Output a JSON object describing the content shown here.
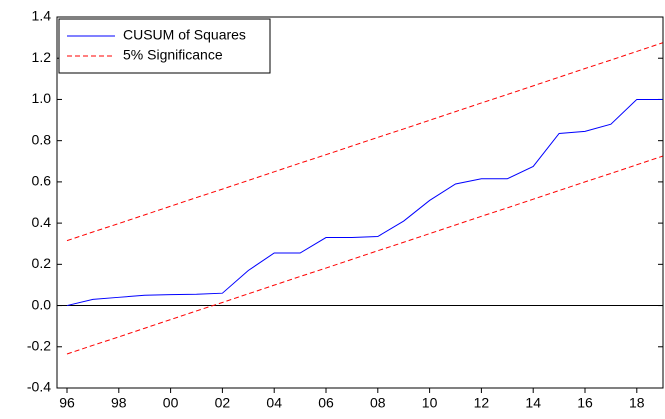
{
  "chart_data": {
    "type": "line",
    "categories": [
      "96",
      null,
      "98",
      null,
      "00",
      null,
      "02",
      null,
      "04",
      null,
      "06",
      null,
      "08",
      null,
      "10",
      null,
      "12",
      null,
      "14",
      null,
      "16",
      null,
      "18",
      null
    ],
    "series": [
      {
        "name": "CUSUM of Squares",
        "color": "#0000ff",
        "dash": false,
        "values": [
          0.0,
          0.03,
          0.04,
          0.05,
          0.053,
          0.055,
          0.06,
          0.17,
          0.255,
          0.255,
          0.33,
          0.33,
          0.335,
          0.41,
          0.51,
          0.59,
          0.615,
          0.615,
          0.675,
          0.835,
          0.845,
          0.88,
          1.0,
          1.0
        ]
      },
      {
        "name": "5% Significance",
        "color": "#ff0000",
        "dash": true,
        "values": [
          0.315,
          0.357,
          0.398,
          0.44,
          0.482,
          0.524,
          0.565,
          0.607,
          0.649,
          0.691,
          0.732,
          0.774,
          0.816,
          0.857,
          0.899,
          0.941,
          0.983,
          1.024,
          1.066,
          1.108,
          1.15,
          1.191,
          1.233,
          1.275
        ]
      },
      {
        "color": "#ff0000",
        "dash": true,
        "values": [
          -0.235,
          -0.193,
          -0.152,
          -0.11,
          -0.068,
          -0.026,
          0.015,
          0.057,
          0.099,
          0.141,
          0.182,
          0.224,
          0.266,
          0.307,
          0.349,
          0.391,
          0.433,
          0.474,
          0.516,
          0.558,
          0.6,
          0.641,
          0.683,
          0.725
        ]
      }
    ],
    "ylim": [
      -0.4,
      1.4
    ],
    "yticks": [
      -0.4,
      -0.2,
      {
        "value": 0,
        "label": "0.0"
      },
      0.2,
      0.4,
      0.6,
      0.8,
      {
        "value": 1,
        "label": "1.0"
      },
      1.2,
      1.4
    ],
    "zero_line": true,
    "legend": "top-left"
  }
}
